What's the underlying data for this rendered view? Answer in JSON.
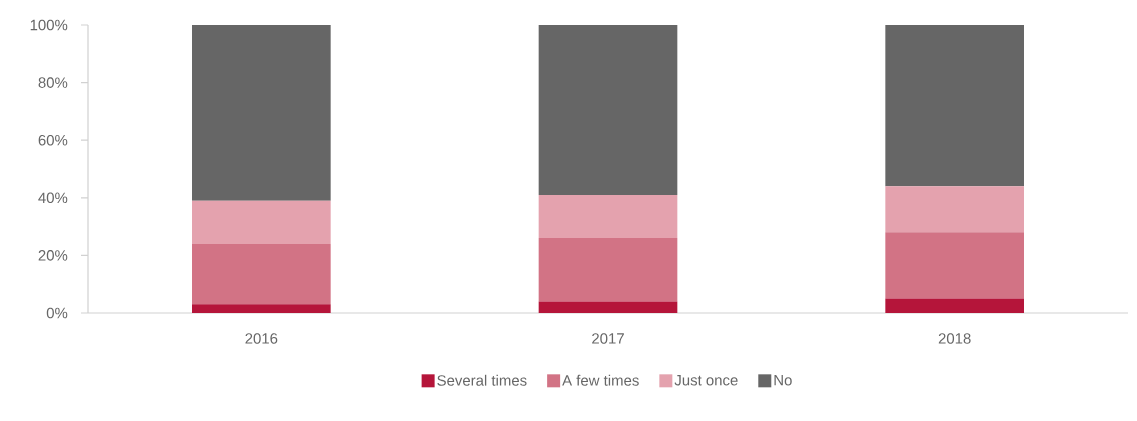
{
  "chart_data": {
    "type": "bar",
    "stacked": true,
    "categories": [
      "2016",
      "2017",
      "2018"
    ],
    "series": [
      {
        "name": "Several times",
        "color": "#b5153a",
        "values": [
          3,
          4,
          5
        ]
      },
      {
        "name": "A few times",
        "color": "#d27385",
        "values": [
          21,
          22,
          23
        ]
      },
      {
        "name": "Just once",
        "color": "#e4a2ae",
        "values": [
          15,
          15,
          16
        ]
      },
      {
        "name": "No",
        "color": "#666666",
        "values": [
          61,
          59,
          56
        ]
      }
    ],
    "ylim": [
      0,
      100
    ],
    "yticks": [
      {
        "value": 0,
        "label": "0%"
      },
      {
        "value": 20,
        "label": "20%"
      },
      {
        "value": 40,
        "label": "40%"
      },
      {
        "value": 60,
        "label": "60%"
      },
      {
        "value": 80,
        "label": "80%"
      },
      {
        "value": 100,
        "label": "100%"
      }
    ],
    "grid": false,
    "legend": "bottom"
  }
}
